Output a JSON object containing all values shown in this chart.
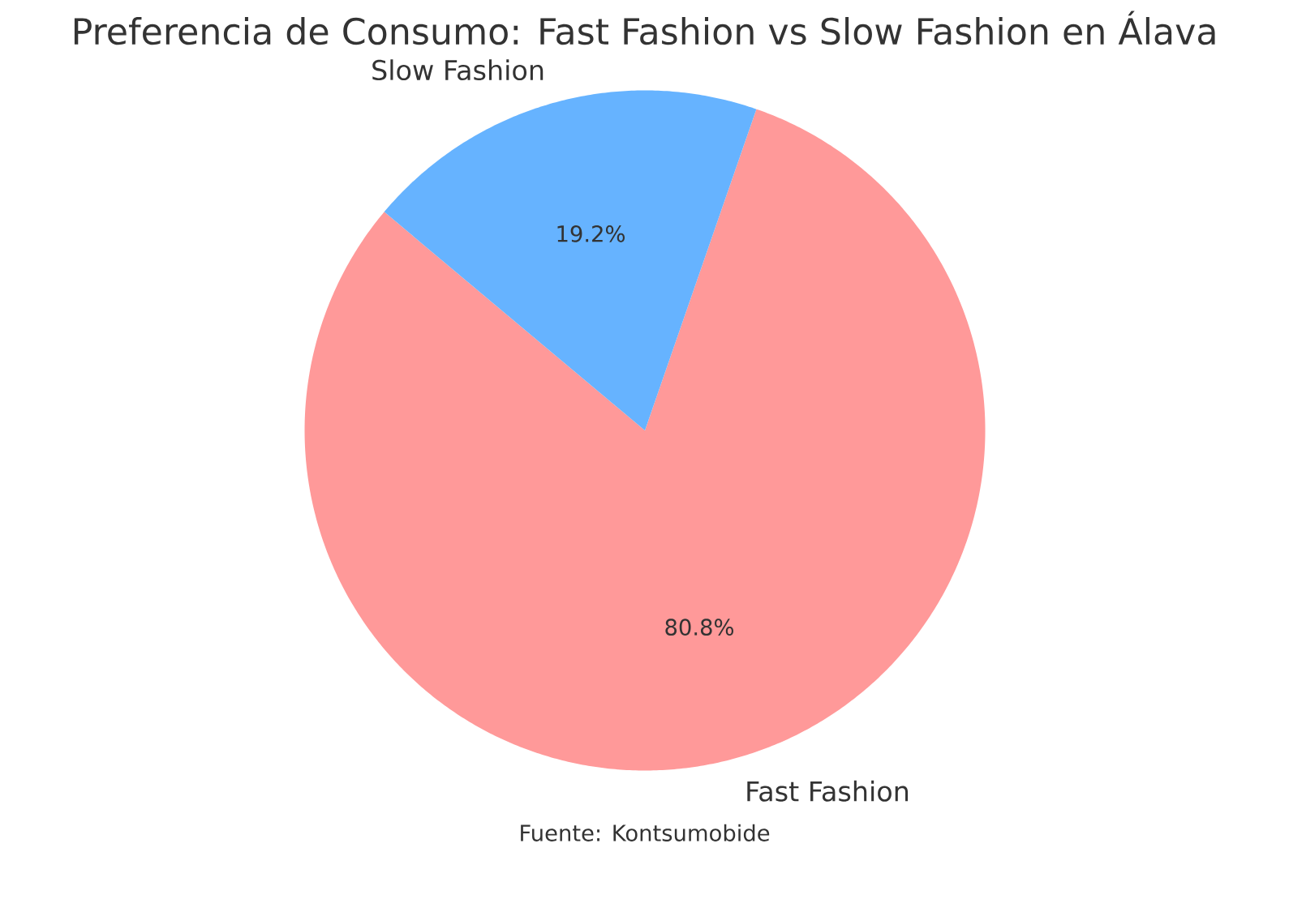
{
  "chart_data": {
    "type": "pie",
    "title": "Preferencia de Consumo: Fast Fashion vs Slow Fashion en Álava",
    "categories": [
      "Fast Fashion",
      "Slow Fashion"
    ],
    "values": [
      80.8,
      19.2
    ],
    "colors": [
      "#ff9999",
      "#66b3ff"
    ],
    "value_labels": [
      "80.8%",
      "19.2%"
    ],
    "annotations": [
      "Fuente: Kontsumobide"
    ]
  }
}
